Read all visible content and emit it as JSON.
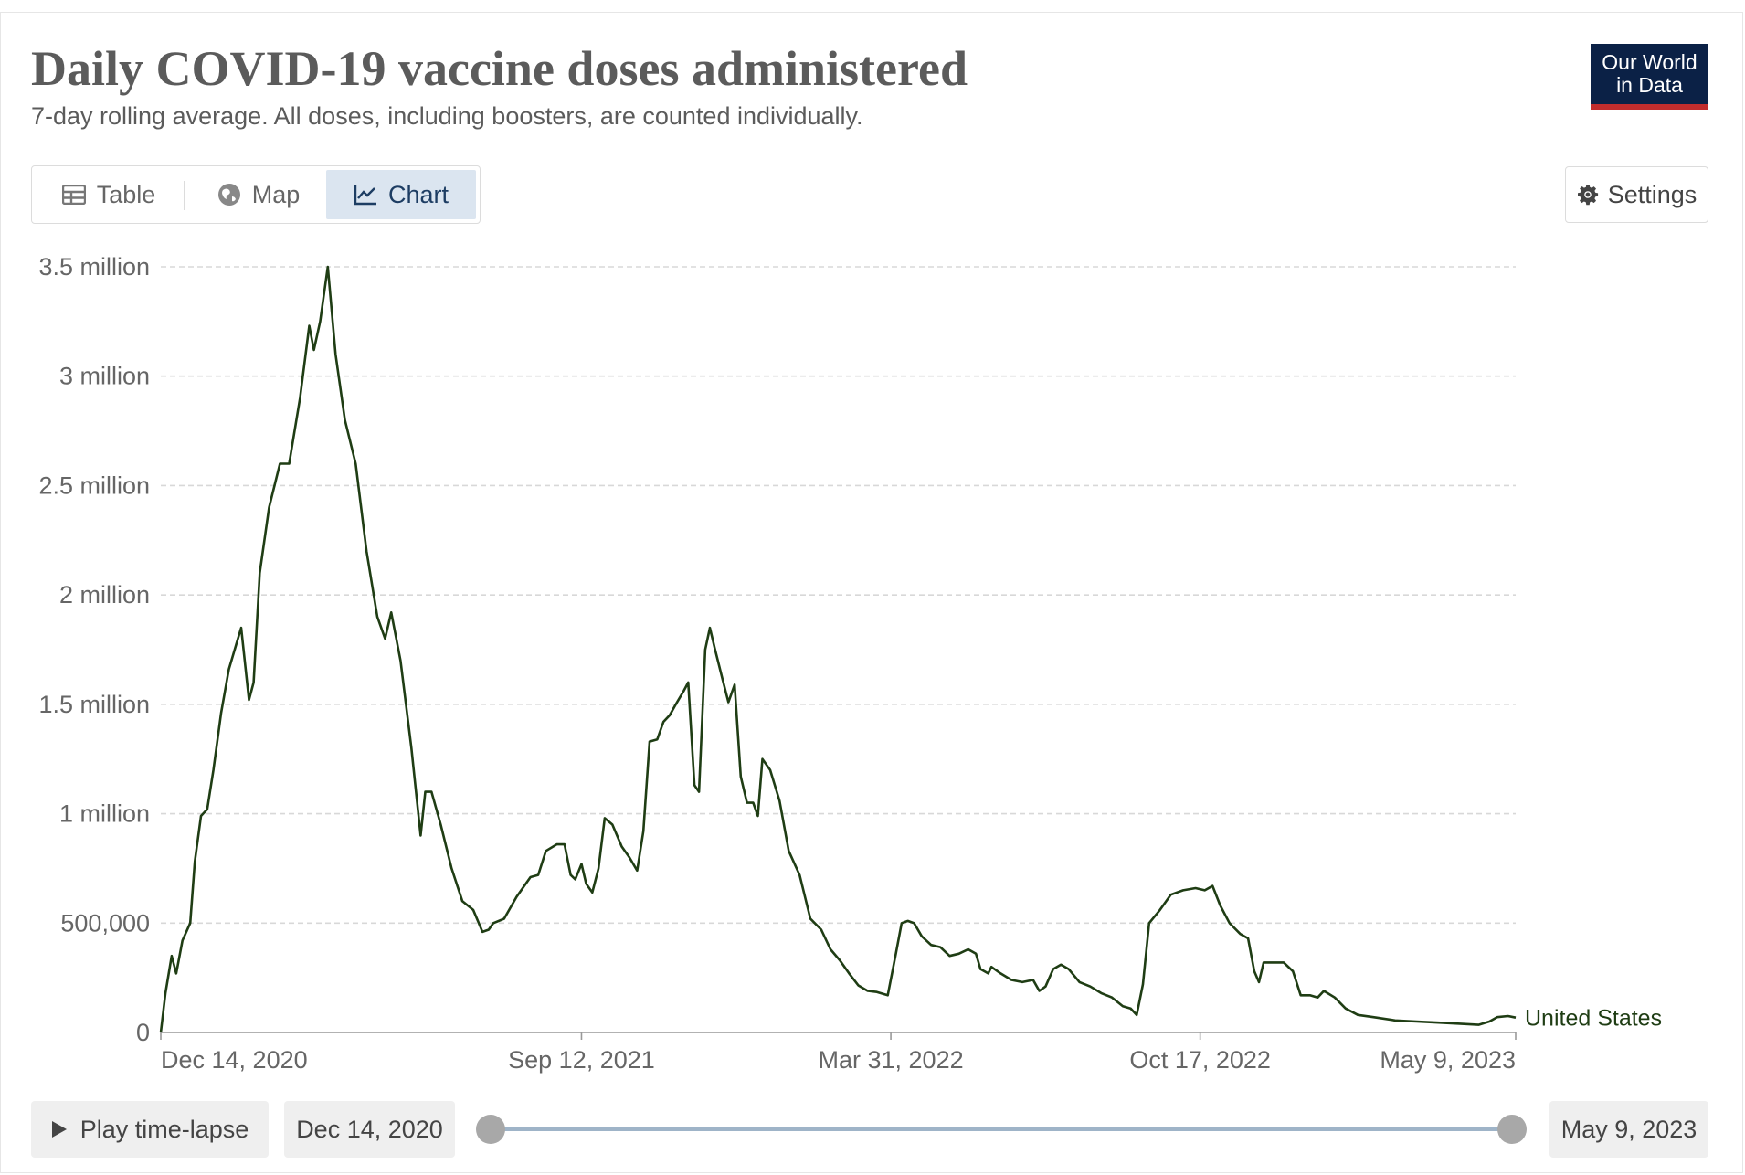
{
  "header": {
    "title": "Daily COVID-19 vaccine doses administered",
    "subtitle": "7-day rolling average. All doses, including boosters, are counted individually.",
    "logo_line1": "Our World",
    "logo_line2": "in Data"
  },
  "tabs": [
    {
      "label": "Table",
      "icon": "table-icon"
    },
    {
      "label": "Map",
      "icon": "globe-icon"
    },
    {
      "label": "Chart",
      "icon": "line-chart-icon",
      "active": true
    }
  ],
  "settings_label": "Settings",
  "controls": {
    "play_label": "Play time-lapse",
    "start_date": "Dec 14, 2020",
    "end_date": "May 9, 2023"
  },
  "colors": {
    "line": "#1f3d14",
    "logo_bg": "#0b2146",
    "logo_accent": "#c22d2d",
    "active_tab_bg": "#dbe5f0"
  },
  "chart_data": {
    "type": "line",
    "ylim": [
      0,
      3500000
    ],
    "y_ticks": [
      {
        "value": 0,
        "label": "0"
      },
      {
        "value": 500000,
        "label": "500,000"
      },
      {
        "value": 1000000,
        "label": "1 million"
      },
      {
        "value": 1500000,
        "label": "1.5 million"
      },
      {
        "value": 2000000,
        "label": "2 million"
      },
      {
        "value": 2500000,
        "label": "2.5 million"
      },
      {
        "value": 3000000,
        "label": "3 million"
      },
      {
        "value": 3500000,
        "label": "3.5 million"
      }
    ],
    "x_ticks": [
      {
        "date": "2020-12-14",
        "label": "Dec 14, 2020"
      },
      {
        "date": "2021-09-12",
        "label": "Sep 12, 2021"
      },
      {
        "date": "2022-03-31",
        "label": "Mar 31, 2022"
      },
      {
        "date": "2022-10-17",
        "label": "Oct 17, 2022"
      },
      {
        "date": "2023-05-09",
        "label": "May 9, 2023"
      }
    ],
    "xlim": [
      "2020-12-14",
      "2023-05-09"
    ],
    "grid": "horizontal dashed",
    "series": [
      {
        "name": "United States",
        "points": [
          [
            "2020-12-14",
            0
          ],
          [
            "2020-12-17",
            180000
          ],
          [
            "2020-12-21",
            350000
          ],
          [
            "2020-12-24",
            270000
          ],
          [
            "2020-12-28",
            420000
          ],
          [
            "2021-01-02",
            500000
          ],
          [
            "2021-01-05",
            780000
          ],
          [
            "2021-01-09",
            990000
          ],
          [
            "2021-01-13",
            1020000
          ],
          [
            "2021-01-17",
            1200000
          ],
          [
            "2021-01-22",
            1460000
          ],
          [
            "2021-01-27",
            1660000
          ],
          [
            "2021-02-01",
            1780000
          ],
          [
            "2021-02-04",
            1850000
          ],
          [
            "2021-02-09",
            1520000
          ],
          [
            "2021-02-12",
            1600000
          ],
          [
            "2021-02-16",
            2100000
          ],
          [
            "2021-02-22",
            2400000
          ],
          [
            "2021-03-01",
            2600000
          ],
          [
            "2021-03-07",
            2600000
          ],
          [
            "2021-03-14",
            2900000
          ],
          [
            "2021-03-20",
            3230000
          ],
          [
            "2021-03-23",
            3120000
          ],
          [
            "2021-03-27",
            3250000
          ],
          [
            "2021-04-01",
            3500000
          ],
          [
            "2021-04-06",
            3100000
          ],
          [
            "2021-04-12",
            2800000
          ],
          [
            "2021-04-19",
            2600000
          ],
          [
            "2021-04-26",
            2200000
          ],
          [
            "2021-05-03",
            1900000
          ],
          [
            "2021-05-08",
            1800000
          ],
          [
            "2021-05-12",
            1920000
          ],
          [
            "2021-05-18",
            1700000
          ],
          [
            "2021-05-25",
            1300000
          ],
          [
            "2021-05-31",
            900000
          ],
          [
            "2021-06-03",
            1100000
          ],
          [
            "2021-06-07",
            1100000
          ],
          [
            "2021-06-13",
            950000
          ],
          [
            "2021-06-20",
            750000
          ],
          [
            "2021-06-27",
            600000
          ],
          [
            "2021-07-04",
            560000
          ],
          [
            "2021-07-10",
            460000
          ],
          [
            "2021-07-14",
            470000
          ],
          [
            "2021-07-17",
            500000
          ],
          [
            "2021-07-24",
            520000
          ],
          [
            "2021-08-01",
            620000
          ],
          [
            "2021-08-10",
            710000
          ],
          [
            "2021-08-15",
            720000
          ],
          [
            "2021-08-20",
            830000
          ],
          [
            "2021-08-27",
            860000
          ],
          [
            "2021-09-01",
            860000
          ],
          [
            "2021-09-05",
            720000
          ],
          [
            "2021-09-08",
            700000
          ],
          [
            "2021-09-12",
            770000
          ],
          [
            "2021-09-15",
            680000
          ],
          [
            "2021-09-19",
            640000
          ],
          [
            "2021-09-23",
            750000
          ],
          [
            "2021-09-27",
            980000
          ],
          [
            "2021-10-02",
            950000
          ],
          [
            "2021-10-08",
            850000
          ],
          [
            "2021-10-13",
            800000
          ],
          [
            "2021-10-18",
            740000
          ],
          [
            "2021-10-22",
            920000
          ],
          [
            "2021-10-26",
            1330000
          ],
          [
            "2021-10-31",
            1340000
          ],
          [
            "2021-11-04",
            1420000
          ],
          [
            "2021-11-08",
            1450000
          ],
          [
            "2021-11-12",
            1500000
          ],
          [
            "2021-11-17",
            1560000
          ],
          [
            "2021-11-20",
            1600000
          ],
          [
            "2021-11-24",
            1130000
          ],
          [
            "2021-11-27",
            1100000
          ],
          [
            "2021-12-01",
            1750000
          ],
          [
            "2021-12-04",
            1850000
          ],
          [
            "2021-12-07",
            1760000
          ],
          [
            "2021-12-12",
            1620000
          ],
          [
            "2021-12-16",
            1510000
          ],
          [
            "2021-12-20",
            1590000
          ],
          [
            "2021-12-24",
            1170000
          ],
          [
            "2021-12-28",
            1050000
          ],
          [
            "2022-01-01",
            1050000
          ],
          [
            "2022-01-04",
            990000
          ],
          [
            "2022-01-07",
            1250000
          ],
          [
            "2022-01-12",
            1200000
          ],
          [
            "2022-01-18",
            1060000
          ],
          [
            "2022-01-24",
            830000
          ],
          [
            "2022-01-31",
            720000
          ],
          [
            "2022-02-07",
            520000
          ],
          [
            "2022-02-14",
            470000
          ],
          [
            "2022-02-20",
            380000
          ],
          [
            "2022-02-26",
            330000
          ],
          [
            "2022-03-04",
            270000
          ],
          [
            "2022-03-10",
            215000
          ],
          [
            "2022-03-16",
            190000
          ],
          [
            "2022-03-22",
            185000
          ],
          [
            "2022-03-29",
            170000
          ],
          [
            "2022-04-03",
            350000
          ],
          [
            "2022-04-07",
            500000
          ],
          [
            "2022-04-11",
            510000
          ],
          [
            "2022-04-15",
            500000
          ],
          [
            "2022-04-20",
            440000
          ],
          [
            "2022-04-26",
            400000
          ],
          [
            "2022-05-02",
            390000
          ],
          [
            "2022-05-08",
            350000
          ],
          [
            "2022-05-14",
            360000
          ],
          [
            "2022-05-20",
            380000
          ],
          [
            "2022-05-25",
            360000
          ],
          [
            "2022-05-28",
            290000
          ],
          [
            "2022-06-02",
            270000
          ],
          [
            "2022-06-04",
            300000
          ],
          [
            "2022-06-10",
            270000
          ],
          [
            "2022-06-17",
            240000
          ],
          [
            "2022-06-24",
            230000
          ],
          [
            "2022-07-01",
            240000
          ],
          [
            "2022-07-05",
            190000
          ],
          [
            "2022-07-09",
            210000
          ],
          [
            "2022-07-14",
            290000
          ],
          [
            "2022-07-19",
            310000
          ],
          [
            "2022-07-24",
            290000
          ],
          [
            "2022-07-31",
            230000
          ],
          [
            "2022-08-07",
            210000
          ],
          [
            "2022-08-14",
            180000
          ],
          [
            "2022-08-21",
            160000
          ],
          [
            "2022-08-28",
            120000
          ],
          [
            "2022-09-02",
            110000
          ],
          [
            "2022-09-06",
            80000
          ],
          [
            "2022-09-10",
            220000
          ],
          [
            "2022-09-14",
            500000
          ],
          [
            "2022-09-21",
            560000
          ],
          [
            "2022-09-28",
            630000
          ],
          [
            "2022-10-06",
            650000
          ],
          [
            "2022-10-14",
            660000
          ],
          [
            "2022-10-20",
            650000
          ],
          [
            "2022-10-25",
            670000
          ],
          [
            "2022-10-30",
            580000
          ],
          [
            "2022-11-05",
            500000
          ],
          [
            "2022-11-12",
            450000
          ],
          [
            "2022-11-17",
            430000
          ],
          [
            "2022-11-21",
            280000
          ],
          [
            "2022-11-24",
            230000
          ],
          [
            "2022-11-27",
            320000
          ],
          [
            "2022-12-04",
            320000
          ],
          [
            "2022-12-10",
            320000
          ],
          [
            "2022-12-16",
            280000
          ],
          [
            "2022-12-21",
            170000
          ],
          [
            "2022-12-27",
            170000
          ],
          [
            "2023-01-01",
            160000
          ],
          [
            "2023-01-05",
            190000
          ],
          [
            "2023-01-12",
            160000
          ],
          [
            "2023-01-19",
            110000
          ],
          [
            "2023-01-27",
            80000
          ],
          [
            "2023-02-06",
            70000
          ],
          [
            "2023-02-20",
            55000
          ],
          [
            "2023-03-06",
            50000
          ],
          [
            "2023-03-20",
            45000
          ],
          [
            "2023-04-03",
            40000
          ],
          [
            "2023-04-15",
            35000
          ],
          [
            "2023-04-22",
            50000
          ],
          [
            "2023-04-27",
            70000
          ],
          [
            "2023-05-04",
            75000
          ],
          [
            "2023-05-09",
            68000
          ]
        ]
      }
    ]
  }
}
